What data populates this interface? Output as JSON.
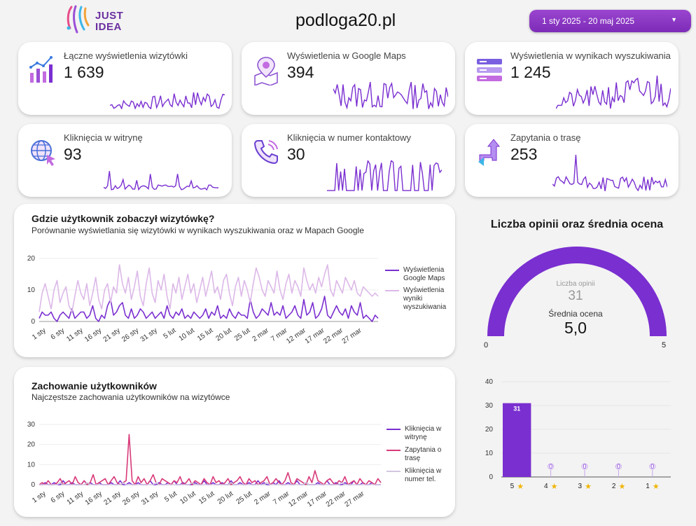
{
  "header": {
    "logo_line1": "JUST",
    "logo_line2": "IDEA",
    "site": "podloga20.pl",
    "date_range": "1 sty 2025 - 20 maj 2025",
    "accent": "#8a3dc7"
  },
  "kpis": [
    {
      "label": "Łączne wyświetlenia wizytówki",
      "value": "1 639",
      "icon": "chart-bars-icon"
    },
    {
      "label": "Wyświetlenia w Google Maps",
      "value": "394",
      "icon": "map-pin-icon"
    },
    {
      "label": "Wyświetlenia w wynikach wyszukiwania",
      "value": "1 245",
      "icon": "search-results-icon"
    },
    {
      "label": "Kliknięcia w witrynę",
      "value": "93",
      "icon": "globe-click-icon"
    },
    {
      "label": "Kliknięcia w numer kontaktowy",
      "value": "30",
      "icon": "phone-icon"
    },
    {
      "label": "Zapytania o trasę",
      "value": "253",
      "icon": "route-arrows-icon"
    }
  ],
  "views_chart": {
    "title": "Gdzie użytkownik zobaczył wizytówkę?",
    "subtitle": "Porównanie wyświetlania się wizytówki w wynikach wyszukiwania oraz w Mapach Google",
    "legend": [
      "Wyświetlenia Google Maps",
      "Wyświetlenia wyniki wyszukiwania"
    ]
  },
  "behavior_chart": {
    "title": "Zachowanie użytkowników",
    "subtitle": "Najczęstsze zachowania użytkowników na wizytówce",
    "legend": [
      "Kliknięcia w witrynę",
      "Zapytania o trasę",
      "Kliknięcia w numer tel."
    ]
  },
  "reviews": {
    "title": "Liczba opinii oraz średnia ocena",
    "count_label": "Liczba opinii",
    "count": "31",
    "avg_label": "Średnia ocena",
    "avg": "5,0",
    "gauge_min": "0",
    "gauge_max": "5",
    "gauge_value": 5
  },
  "chart_data": [
    {
      "type": "line",
      "title": "Gdzie użytkownik zobaczył wizytówkę?",
      "x_ticks": [
        "1 sty",
        "6 sty",
        "11 sty",
        "16 sty",
        "21 sty",
        "26 sty",
        "31 sty",
        "5 lut",
        "10 lut",
        "15 lut",
        "20 lut",
        "25 lut",
        "2 mar",
        "7 mar",
        "12 mar",
        "17 mar",
        "22 mar",
        "27 mar"
      ],
      "ylim": [
        0,
        20
      ],
      "y_ticks": [
        0,
        10,
        20
      ],
      "series": [
        {
          "name": "Wyświetlenia Google Maps",
          "color": "#7a2fd0",
          "values": [
            1,
            3,
            2,
            2,
            3,
            1,
            0,
            2,
            3,
            2,
            1,
            4,
            1,
            2,
            3,
            3,
            1,
            2,
            5,
            1,
            0,
            2,
            1,
            5,
            7,
            2,
            3,
            5,
            6,
            2,
            1,
            4,
            1,
            2,
            4,
            3,
            1,
            2,
            3,
            1,
            2,
            3,
            1,
            5,
            2,
            1,
            3,
            2,
            4,
            1,
            2,
            1,
            3,
            2,
            1,
            2,
            4,
            1,
            3,
            2,
            5,
            1,
            2,
            1,
            4,
            2,
            1,
            3,
            2,
            2,
            1,
            7,
            3,
            1,
            2,
            4,
            3,
            2,
            6,
            2,
            3,
            2,
            5,
            1,
            2,
            3,
            5,
            2,
            1,
            7,
            2,
            3,
            6,
            1,
            2,
            4,
            8,
            2,
            1,
            3,
            5,
            3,
            2,
            4,
            1,
            5,
            3,
            2,
            6,
            1,
            2,
            1,
            0,
            2,
            1
          ]
        },
        {
          "name": "Wyświetlenia wyniki wyszukiwania",
          "color": "#dcb8e8",
          "values": [
            3,
            9,
            12,
            8,
            4,
            10,
            13,
            6,
            9,
            11,
            5,
            3,
            8,
            13,
            9,
            7,
            12,
            5,
            9,
            14,
            7,
            4,
            10,
            12,
            6,
            11,
            9,
            18,
            12,
            9,
            14,
            7,
            11,
            16,
            8,
            5,
            12,
            17,
            9,
            6,
            13,
            10,
            15,
            8,
            4,
            12,
            9,
            14,
            7,
            11,
            15,
            9,
            12,
            6,
            10,
            14,
            8,
            12,
            16,
            9,
            11,
            7,
            13,
            15,
            9,
            5,
            11,
            14,
            8,
            13,
            10,
            6,
            12,
            17,
            14,
            10,
            8,
            13,
            11,
            9,
            16,
            10,
            7,
            12,
            15,
            9,
            13,
            11,
            8,
            17,
            13,
            10,
            12,
            9,
            14,
            11,
            15,
            18,
            10,
            8,
            13,
            11,
            9,
            14,
            12,
            10,
            13,
            9,
            8,
            11,
            10,
            9,
            8,
            9,
            8
          ]
        }
      ]
    },
    {
      "type": "line",
      "title": "Zachowanie użytkowników",
      "x_ticks": [
        "1 sty",
        "6 sty",
        "11 sty",
        "16 sty",
        "21 sty",
        "26 sty",
        "31 sty",
        "5 lut",
        "10 lut",
        "15 lut",
        "20 lut",
        "25 lut",
        "2 mar",
        "7 mar",
        "12 mar",
        "17 mar",
        "22 mar",
        "27 mar"
      ],
      "ylim": [
        0,
        30
      ],
      "y_ticks": [
        0,
        10,
        20,
        30
      ],
      "series": [
        {
          "name": "Kliknięcia w witrynę",
          "color": "#7a2fd0",
          "values": [
            0,
            0,
            1,
            0,
            0,
            1,
            0,
            0,
            2,
            0,
            0,
            1,
            0,
            0,
            0,
            2,
            0,
            1,
            0,
            0,
            1,
            0,
            0,
            0,
            1,
            0,
            0,
            2,
            0,
            0,
            1,
            0,
            0,
            1,
            0,
            0,
            0,
            2,
            0,
            0,
            1,
            0,
            0,
            1,
            0,
            2,
            0,
            0,
            1,
            0,
            0,
            0,
            1,
            0,
            0,
            2,
            0,
            0,
            1,
            0,
            0,
            1,
            0,
            0,
            2,
            0,
            0,
            1,
            0,
            0,
            1,
            0,
            0,
            2,
            0,
            1,
            0,
            0,
            1,
            0,
            2,
            0,
            0,
            1,
            0,
            0,
            2,
            0,
            0,
            1,
            0,
            0,
            0,
            1,
            0,
            0,
            2,
            0,
            0,
            1,
            0,
            0,
            1,
            0,
            0,
            2,
            0,
            0,
            1,
            0,
            0,
            1,
            0,
            0,
            0
          ]
        },
        {
          "name": "Zapytania o trasę",
          "color": "#d83a7a",
          "values": [
            0,
            1,
            0,
            2,
            0,
            0,
            1,
            3,
            0,
            1,
            2,
            0,
            4,
            1,
            0,
            2,
            0,
            1,
            5,
            0,
            1,
            2,
            3,
            0,
            2,
            4,
            1,
            0,
            1,
            2,
            25,
            2,
            0,
            4,
            1,
            3,
            0,
            2,
            5,
            1,
            0,
            3,
            2,
            1,
            0,
            2,
            1,
            4,
            0,
            1,
            3,
            0,
            2,
            1,
            0,
            3,
            1,
            0,
            4,
            1,
            2,
            0,
            1,
            3,
            0,
            1,
            2,
            4,
            1,
            0,
            3,
            1,
            2,
            0,
            1,
            2,
            4,
            0,
            1,
            3,
            1,
            0,
            2,
            6,
            1,
            0,
            3,
            2,
            1,
            0,
            4,
            1,
            7,
            2,
            1,
            0,
            2,
            3,
            1,
            0,
            2,
            1,
            4,
            0,
            1,
            2,
            0,
            3,
            1,
            0,
            2,
            1,
            0,
            3,
            1
          ]
        },
        {
          "name": "Kliknięcia w numer tel.",
          "color": "#d2c6e0",
          "values": [
            0,
            0,
            0,
            0,
            0,
            0,
            0,
            1,
            0,
            0,
            0,
            0,
            0,
            0,
            0,
            0,
            1,
            0,
            0,
            0,
            0,
            0,
            0,
            0,
            0,
            0,
            0,
            0,
            1,
            0,
            0,
            0,
            0,
            0,
            0,
            0,
            0,
            0,
            0,
            1,
            0,
            0,
            0,
            0,
            0,
            0,
            0,
            0,
            0,
            0,
            0,
            1,
            0,
            0,
            0,
            0,
            0,
            0,
            0,
            0,
            0,
            0,
            0,
            0,
            1,
            0,
            0,
            0,
            0,
            0,
            0,
            0,
            0,
            0,
            0,
            0,
            1,
            0,
            0,
            0,
            0,
            0,
            0,
            0,
            0,
            0,
            0,
            0,
            0,
            1,
            0,
            0,
            0,
            0,
            0,
            0,
            0,
            0,
            0,
            0,
            0,
            1,
            0,
            0,
            0,
            0,
            0,
            0,
            0,
            0,
            0,
            0,
            0,
            0,
            0
          ]
        }
      ]
    },
    {
      "type": "bar",
      "categories": [
        "5",
        "4",
        "3",
        "2",
        "1"
      ],
      "values": [
        31,
        0,
        0,
        0,
        0
      ],
      "ylim": [
        0,
        40
      ],
      "y_ticks": [
        0,
        10,
        20,
        30,
        40
      ],
      "color": "#7a2fd0"
    }
  ]
}
